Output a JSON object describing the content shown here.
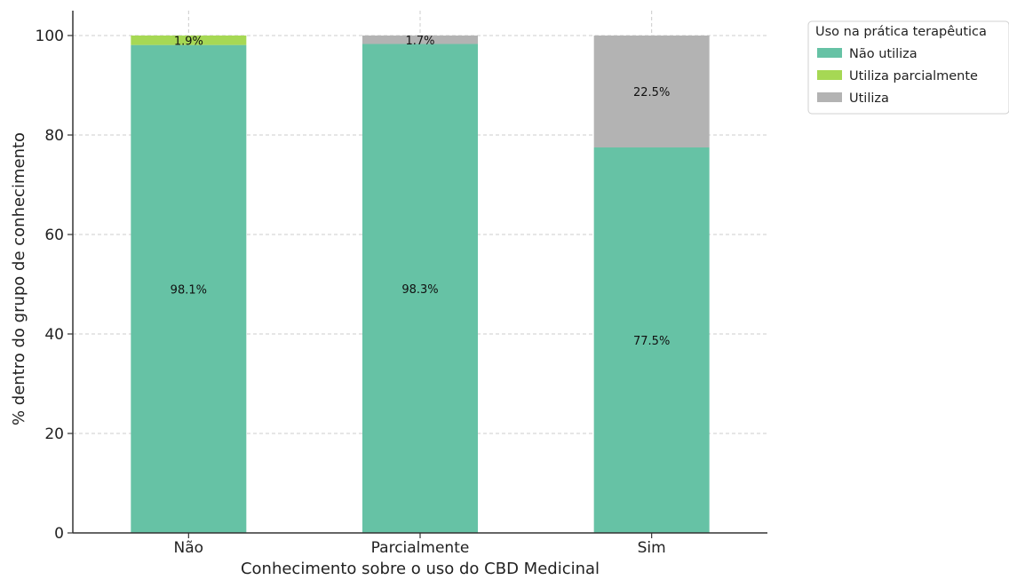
{
  "chart_data": {
    "type": "bar",
    "stacked": true,
    "title": "",
    "xlabel": "Conhecimento sobre o uso do CBD Medicinal",
    "ylabel": "% dentro do grupo de conhecimento",
    "categories": [
      "Não",
      "Parcialmente",
      "Sim"
    ],
    "ylim": [
      0,
      105
    ],
    "yticks": [
      0,
      20,
      40,
      60,
      80,
      100
    ],
    "grid": true,
    "legend": {
      "title": "Uso na prática terapêutica",
      "placement": "outside top-right"
    },
    "series": [
      {
        "name": "Não utiliza",
        "color": "#66c2a5",
        "values": [
          98.1,
          98.3,
          77.5
        ],
        "labels": [
          "98.1%",
          "98.3%",
          "77.5%"
        ]
      },
      {
        "name": "Utiliza parcialmente",
        "color": "#a6d854",
        "values": [
          1.9,
          0,
          0
        ],
        "labels": [
          "1.9%",
          "",
          ""
        ]
      },
      {
        "name": "Utiliza",
        "color": "#b3b3b3",
        "values": [
          0,
          1.7,
          22.5
        ],
        "labels": [
          "",
          "1.7%",
          "22.5%"
        ]
      }
    ]
  }
}
